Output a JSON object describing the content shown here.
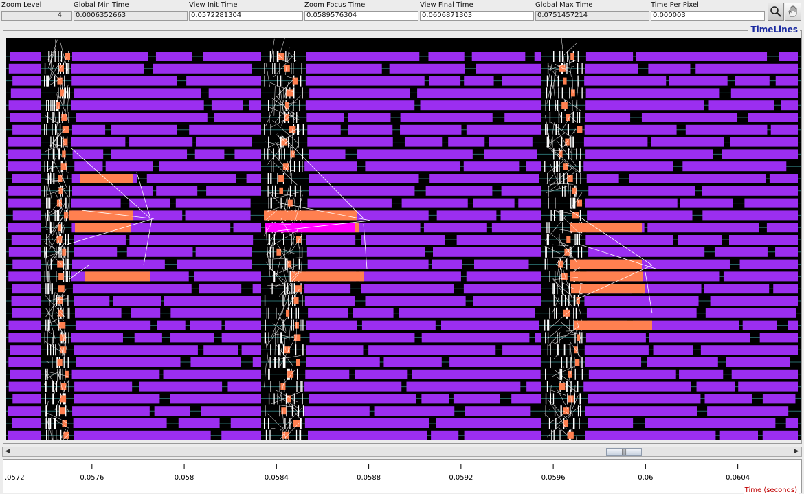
{
  "toolbar": {
    "zoom_level": {
      "label": "Zoom Level",
      "value": "4"
    },
    "global_min_time": {
      "label": "Global Min Time",
      "value": "0.0006352663"
    },
    "view_init_time": {
      "label": "View  Init Time",
      "value": "0.0572281304"
    },
    "zoom_focus_time": {
      "label": "Zoom Focus Time",
      "value": "0.0589576304"
    },
    "view_final_time": {
      "label": "View Final Time",
      "value": "0.0606871303"
    },
    "global_max_time": {
      "label": "Global Max Time",
      "value": "0.0751457214"
    },
    "time_per_pixel": {
      "label": "Time Per Pixel",
      "value": "0.000003"
    },
    "zoom_tool_icon": "magnifier-icon",
    "hand_tool_icon": "hand-icon"
  },
  "panel": {
    "title": "TimeLines"
  },
  "scrollbar": {
    "left_icon": "arrow-left-icon",
    "right_icon": "arrow-right-icon",
    "thumb_grip": "|||"
  },
  "axis": {
    "title": "Time (seconds)",
    "tick_labels": [
      ".0572",
      "0.0576",
      "0.058",
      "0.0584",
      "0.0588",
      "0.0592",
      "0.0596",
      "0.06",
      "0.0604"
    ]
  },
  "colors": {
    "state_compute": "#9b2ef0",
    "state_wait": "#ff8050",
    "state_highlight": "#ff00ff",
    "arrow": "#ffffff",
    "background": "#000000",
    "title": "#1a2aa0",
    "axis_title": "#c00000"
  }
}
